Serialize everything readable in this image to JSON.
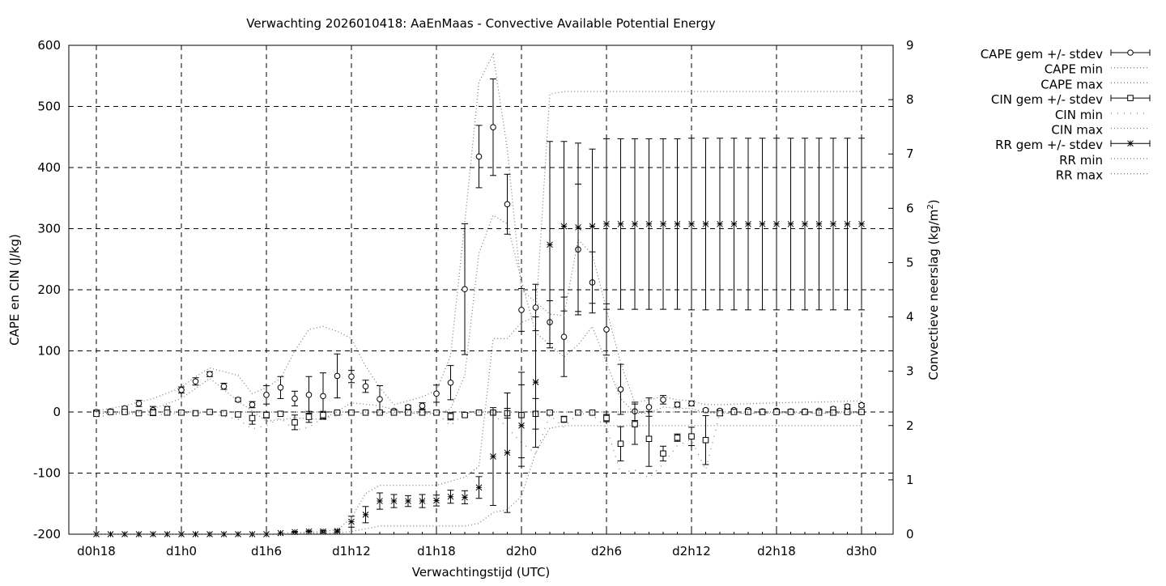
{
  "chart_data": {
    "type": "line",
    "title": "Verwachting 2026010418: AaEnMaas - Convective Available Potential Energy",
    "xlabel": "Verwachtingstijd (UTC)",
    "ylabel": "CAPE en CIN (J/kg)",
    "y2label_main": "Convectieve neerslag (kg/m",
    "y2label_sup": "2",
    "y2label_end": ")",
    "x_unit": "hours since d0h18",
    "xlim": [
      0,
      55
    ],
    "ylim": [
      -200,
      600
    ],
    "y2lim": [
      0,
      9
    ],
    "grid": true,
    "legend_position": "top-right (outside plot)",
    "x_ticks": [
      {
        "x": 0,
        "label": "d0h18"
      },
      {
        "x": 6,
        "label": "d1h0"
      },
      {
        "x": 12,
        "label": "d1h6"
      },
      {
        "x": 18,
        "label": "d1h12"
      },
      {
        "x": 24,
        "label": "d1h18"
      },
      {
        "x": 30,
        "label": "d2h0"
      },
      {
        "x": 36,
        "label": "d2h6"
      },
      {
        "x": 42,
        "label": "d2h12"
      },
      {
        "x": 48,
        "label": "d2h18"
      },
      {
        "x": 54,
        "label": "d3h0"
      }
    ],
    "y_ticks": [
      600,
      500,
      400,
      300,
      200,
      100,
      0,
      -100,
      -200
    ],
    "y2_ticks": [
      9,
      8,
      7,
      6,
      5,
      4,
      3,
      2,
      1,
      0
    ],
    "legend": [
      {
        "label": "CAPE gem +/- stdev",
        "symbol": "circle"
      },
      {
        "label": "CAPE min",
        "symbol": "dotted"
      },
      {
        "label": "CAPE max",
        "symbol": "dotted"
      },
      {
        "label": "CIN gem +/- stdev",
        "symbol": "square"
      },
      {
        "label": "CIN min",
        "symbol": "sparse-dotted"
      },
      {
        "label": "CIN max",
        "symbol": "dotted"
      },
      {
        "label": "RR gem +/- stdev",
        "symbol": "star"
      },
      {
        "label": "RR min",
        "symbol": "dotted"
      },
      {
        "label": "RR max",
        "symbol": "dotted"
      }
    ],
    "series": [
      {
        "name": "CAPE gem +/- stdev",
        "axis": "left",
        "marker": "circle",
        "x": [
          0,
          1,
          2,
          3,
          4,
          5,
          6,
          7,
          8,
          9,
          10,
          11,
          12,
          13,
          14,
          15,
          16,
          17,
          18,
          19,
          20,
          21,
          22,
          23,
          24,
          25,
          26,
          27,
          28,
          29,
          30,
          31,
          32,
          33,
          34,
          35,
          36,
          37,
          38,
          39,
          40,
          41,
          42,
          43,
          44,
          45,
          46,
          47,
          48,
          49,
          50,
          51,
          52,
          53,
          54
        ],
        "mean": [
          0,
          1,
          6,
          14,
          3,
          5,
          36,
          50,
          62,
          42,
          20,
          12,
          28,
          40,
          22,
          28,
          26,
          59,
          58,
          42,
          21,
          2,
          8,
          10,
          30,
          48,
          201,
          418,
          466,
          340,
          167,
          171,
          147,
          123,
          266,
          212,
          135,
          37,
          1,
          8,
          20,
          12,
          14,
          3,
          2,
          3,
          3,
          1,
          2,
          1,
          1,
          2,
          5,
          9,
          11
        ],
        "stdev": [
          3,
          2,
          3,
          5,
          6,
          4,
          5,
          6,
          4,
          5,
          3,
          5,
          15,
          18,
          12,
          30,
          38,
          36,
          10,
          10,
          22,
          2,
          3,
          5,
          14,
          28,
          107,
          51,
          79,
          49,
          35,
          38,
          35,
          65,
          107,
          50,
          42,
          41,
          15,
          15,
          7,
          4,
          4,
          2,
          2,
          2,
          2,
          2,
          2,
          2,
          2,
          2,
          3,
          3,
          3
        ]
      },
      {
        "name": "CAPE min",
        "axis": "left",
        "x": [
          0,
          3,
          6,
          8,
          10,
          12,
          14,
          16,
          18,
          20,
          22,
          24,
          25,
          26,
          27,
          28,
          29,
          30,
          31,
          32,
          33,
          34,
          35,
          36,
          37,
          38,
          39,
          40,
          41,
          42,
          43,
          44,
          48,
          54
        ],
        "y": [
          -2,
          -3,
          22,
          55,
          18,
          -15,
          -10,
          -12,
          15,
          10,
          -2,
          -3,
          5,
          60,
          260,
          322,
          308,
          215,
          130,
          110,
          90,
          110,
          140,
          80,
          22,
          -2,
          -2,
          8,
          6,
          6,
          -2,
          -2,
          -2,
          -2
        ]
      },
      {
        "name": "CAPE max",
        "axis": "left",
        "x": [
          0,
          2,
          4,
          6,
          7,
          8,
          10,
          11,
          12,
          13,
          14,
          15,
          16,
          17,
          18,
          19,
          20,
          21,
          22,
          23,
          24,
          25,
          26,
          27,
          28,
          29,
          30,
          31,
          32,
          33,
          34,
          35,
          36,
          37,
          38,
          39,
          40,
          41,
          42,
          43,
          44,
          48,
          54
        ],
        "y": [
          2,
          10,
          22,
          40,
          58,
          72,
          60,
          30,
          40,
          55,
          100,
          135,
          140,
          132,
          120,
          75,
          40,
          12,
          18,
          25,
          35,
          92,
          310,
          540,
          585,
          430,
          200,
          180,
          160,
          158,
          282,
          258,
          168,
          80,
          15,
          20,
          25,
          20,
          18,
          12,
          12,
          15,
          18
        ]
      },
      {
        "name": "CIN gem +/- stdev",
        "axis": "left",
        "marker": "square",
        "x": [
          0,
          1,
          2,
          3,
          4,
          5,
          6,
          7,
          8,
          9,
          10,
          11,
          12,
          13,
          14,
          15,
          16,
          17,
          18,
          19,
          20,
          21,
          22,
          23,
          24,
          25,
          26,
          27,
          28,
          29,
          30,
          31,
          32,
          33,
          34,
          35,
          36,
          37,
          38,
          39,
          40,
          41,
          42,
          43,
          44,
          45,
          46,
          47,
          48,
          49,
          50,
          51,
          52,
          53,
          54
        ],
        "mean": [
          -3,
          0,
          0,
          -2,
          -1,
          -1,
          -1,
          -2,
          0,
          -2,
          -4,
          -10,
          -5,
          -3,
          -17,
          -8,
          -5,
          -1,
          -1,
          -1,
          -1,
          -1,
          -1,
          -1,
          -1,
          -7,
          -5,
          -1,
          -1,
          -2,
          -5,
          -3,
          -1,
          -12,
          -1,
          -1,
          -10,
          -52,
          -20,
          -44,
          -68,
          -42,
          -40,
          -46,
          -2,
          0,
          0,
          0,
          0,
          0,
          0,
          -1,
          -1,
          0,
          0
        ],
        "stdev": [
          4,
          1,
          1,
          1,
          5,
          2,
          3,
          1,
          1,
          1,
          4,
          10,
          5,
          2,
          12,
          9,
          6,
          1,
          1,
          1,
          1,
          2,
          2,
          2,
          2,
          6,
          2,
          1,
          2,
          8,
          70,
          25,
          3,
          5,
          2,
          2,
          6,
          28,
          33,
          45,
          12,
          6,
          15,
          40,
          4,
          1,
          1,
          1,
          1,
          1,
          1,
          1,
          4,
          1,
          1
        ]
      },
      {
        "name": "CIN min",
        "axis": "left",
        "dash": "1 7",
        "x": [
          0,
          2,
          4,
          6,
          8,
          10,
          11,
          12,
          13,
          14,
          15,
          16,
          18,
          20,
          22,
          24,
          25,
          26,
          28,
          30,
          31,
          32,
          33,
          34,
          35,
          36,
          37,
          38,
          39,
          40,
          41,
          42,
          43,
          44,
          48,
          54
        ],
        "y": [
          -8,
          -2,
          -5,
          -2,
          -2,
          -12,
          -28,
          -22,
          -10,
          -30,
          -25,
          -10,
          -2,
          -2,
          -2,
          -2,
          -22,
          -2,
          -2,
          -50,
          -68,
          -5,
          -25,
          -2,
          -5,
          -25,
          -100,
          -95,
          -108,
          -85,
          -55,
          -45,
          -95,
          -2,
          -2,
          -2
        ]
      },
      {
        "name": "CIN max",
        "axis": "left",
        "x": [
          0,
          6,
          12,
          18,
          24,
          30,
          36,
          42,
          48,
          54
        ],
        "y": [
          0,
          0,
          0,
          0,
          0,
          0,
          0,
          0,
          0,
          0
        ]
      },
      {
        "name": "RR gem +/- stdev",
        "axis": "right",
        "marker": "star",
        "x": [
          0,
          1,
          2,
          3,
          4,
          5,
          6,
          7,
          8,
          9,
          10,
          11,
          12,
          13,
          14,
          15,
          16,
          17,
          18,
          19,
          20,
          21,
          22,
          23,
          24,
          25,
          26,
          27,
          28,
          29,
          30,
          31,
          32,
          33,
          34,
          35,
          36,
          37,
          38,
          39,
          40,
          41,
          42,
          43,
          44,
          45,
          46,
          47,
          48,
          49,
          50,
          51,
          52,
          53,
          54
        ],
        "mean": [
          0,
          0,
          0,
          0,
          0,
          0,
          0,
          0,
          0,
          0,
          0,
          0,
          0,
          0.02,
          0.04,
          0.05,
          0.05,
          0.06,
          0.23,
          0.36,
          0.61,
          0.61,
          0.61,
          0.61,
          0.62,
          0.69,
          0.68,
          0.86,
          1.43,
          1.5,
          2.0,
          2.8,
          5.33,
          5.67,
          5.65,
          5.67,
          5.71,
          5.71,
          5.71,
          5.71,
          5.71,
          5.71,
          5.71,
          5.71,
          5.71,
          5.71,
          5.71,
          5.71,
          5.71,
          5.71,
          5.71,
          5.71,
          5.71,
          5.71,
          5.71
        ],
        "stdev": [
          0,
          0,
          0,
          0,
          0,
          0,
          0,
          0,
          0,
          0,
          0,
          0,
          0,
          0,
          0.01,
          0.01,
          0.02,
          0.02,
          0.1,
          0.15,
          0.15,
          0.12,
          0.1,
          0.12,
          0.1,
          0.12,
          0.12,
          0.2,
          0.9,
          1.1,
          0.75,
          1.2,
          1.9,
          1.56,
          1.55,
          1.42,
          1.57,
          1.57,
          1.57,
          1.57,
          1.57,
          1.57,
          1.58,
          1.58,
          1.58,
          1.58,
          1.58,
          1.58,
          1.58,
          1.58,
          1.58,
          1.58,
          1.58,
          1.58,
          1.58
        ]
      },
      {
        "name": "RR min",
        "axis": "right",
        "x": [
          0,
          6,
          12,
          16,
          17,
          18,
          19,
          20,
          24,
          26,
          27,
          28,
          29,
          30,
          31,
          32,
          33,
          34,
          54
        ],
        "y": [
          0,
          0,
          0,
          0.02,
          0.02,
          0.05,
          0.1,
          0.15,
          0.15,
          0.15,
          0.2,
          0.4,
          0.45,
          0.7,
          1.5,
          1.95,
          2.0,
          2.0,
          2.0
        ]
      },
      {
        "name": "RR max",
        "axis": "right",
        "x": [
          0,
          6,
          12,
          16,
          17,
          18,
          19,
          20,
          24,
          26,
          27,
          28,
          29,
          30,
          31,
          32,
          33,
          36,
          54
        ],
        "y": [
          0,
          0,
          0,
          0.05,
          0.08,
          0.3,
          0.75,
          0.9,
          0.9,
          1.05,
          1.25,
          3.6,
          3.6,
          3.9,
          4.0,
          8.1,
          8.15,
          8.15,
          8.15
        ]
      }
    ]
  }
}
